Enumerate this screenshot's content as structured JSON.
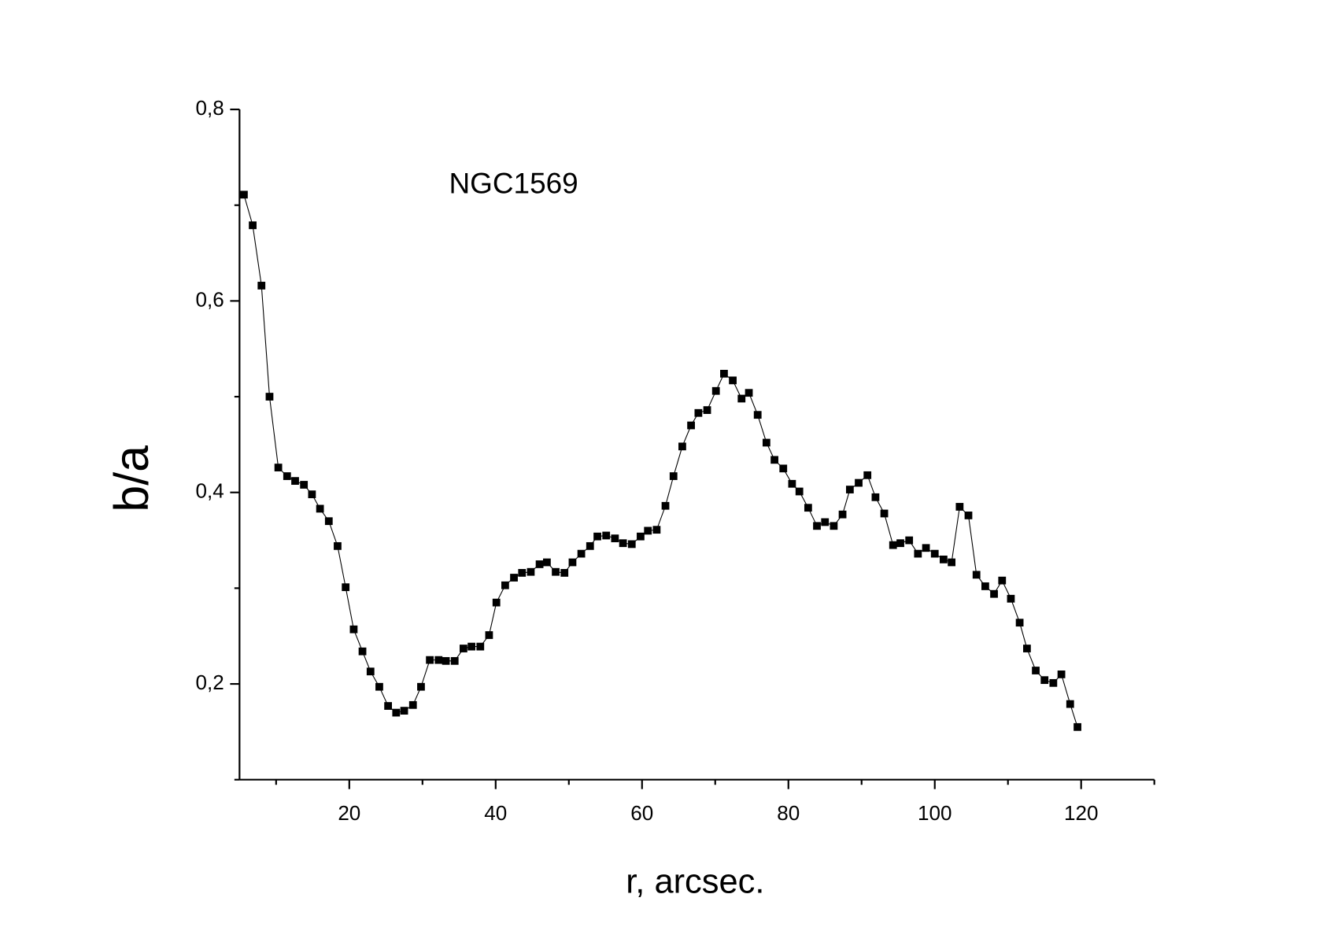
{
  "chart_data": {
    "type": "line",
    "annotation": "NGC1569",
    "x_label": "r,  arcsec.",
    "y_label": "b/a",
    "color": "#000000",
    "marker": "square",
    "x": [
      5.6,
      6.8,
      8.0,
      9.1,
      10.3,
      11.5,
      12.6,
      13.8,
      14.9,
      16.0,
      17.2,
      18.4,
      19.5,
      20.6,
      21.8,
      22.9,
      24.1,
      25.3,
      26.4,
      27.5,
      28.7,
      29.8,
      31.0,
      32.2,
      33.2,
      34.4,
      35.6,
      36.7,
      37.9,
      39.1,
      40.1,
      41.3,
      42.5,
      43.6,
      44.8,
      46.0,
      47.0,
      48.2,
      49.4,
      50.5,
      51.7,
      52.9,
      53.9,
      55.1,
      56.3,
      57.4,
      58.6,
      59.8,
      60.8,
      62.0,
      63.2,
      64.3,
      65.5,
      66.7,
      67.7,
      68.9,
      70.1,
      71.2,
      72.4,
      73.6,
      74.6,
      75.8,
      77.0,
      78.1,
      79.3,
      80.5,
      81.5,
      82.7,
      83.9,
      85.0,
      86.2,
      87.4,
      88.4,
      89.6,
      90.8,
      91.9,
      93.1,
      94.3,
      95.3,
      96.5,
      97.7,
      98.8,
      100.0,
      101.2,
      102.3,
      103.4,
      104.6,
      105.7,
      106.9,
      108.1,
      109.2,
      110.4,
      111.6,
      112.6,
      113.8,
      115.0,
      116.2,
      117.3,
      118.5,
      119.5
    ],
    "values": [
      0.711,
      0.679,
      0.616,
      0.5,
      0.426,
      0.417,
      0.412,
      0.408,
      0.398,
      0.383,
      0.37,
      0.344,
      0.301,
      0.257,
      0.234,
      0.213,
      0.197,
      0.177,
      0.17,
      0.172,
      0.178,
      0.197,
      0.225,
      0.225,
      0.224,
      0.224,
      0.237,
      0.239,
      0.239,
      0.251,
      0.285,
      0.303,
      0.311,
      0.316,
      0.317,
      0.325,
      0.327,
      0.317,
      0.316,
      0.327,
      0.336,
      0.344,
      0.354,
      0.355,
      0.352,
      0.347,
      0.346,
      0.354,
      0.36,
      0.361,
      0.386,
      0.417,
      0.448,
      0.47,
      0.483,
      0.486,
      0.506,
      0.524,
      0.517,
      0.498,
      0.504,
      0.481,
      0.452,
      0.434,
      0.425,
      0.409,
      0.401,
      0.384,
      0.365,
      0.369,
      0.365,
      0.377,
      0.403,
      0.41,
      0.418,
      0.395,
      0.378,
      0.345,
      0.347,
      0.35,
      0.336,
      0.342,
      0.336,
      0.33,
      0.327,
      0.385,
      0.376,
      0.314,
      0.302,
      0.294,
      0.308,
      0.289,
      0.264,
      0.237,
      0.214,
      0.204,
      0.201,
      0.21,
      0.179,
      0.155
    ],
    "xlim": [
      5,
      130
    ],
    "ylim": [
      0.1,
      0.8
    ],
    "xticks": [
      20,
      40,
      60,
      80,
      100,
      120
    ],
    "yticks": [
      {
        "value": 0.2,
        "label": "0,2"
      },
      {
        "value": 0.4,
        "label": "0,4"
      },
      {
        "value": 0.6,
        "label": "0,6"
      },
      {
        "value": 0.8,
        "label": "0,8"
      }
    ],
    "xminorticks": [
      10,
      30,
      50,
      70,
      90,
      110,
      130
    ],
    "yminorticks": [
      0.1,
      0.3,
      0.5,
      0.7
    ]
  }
}
